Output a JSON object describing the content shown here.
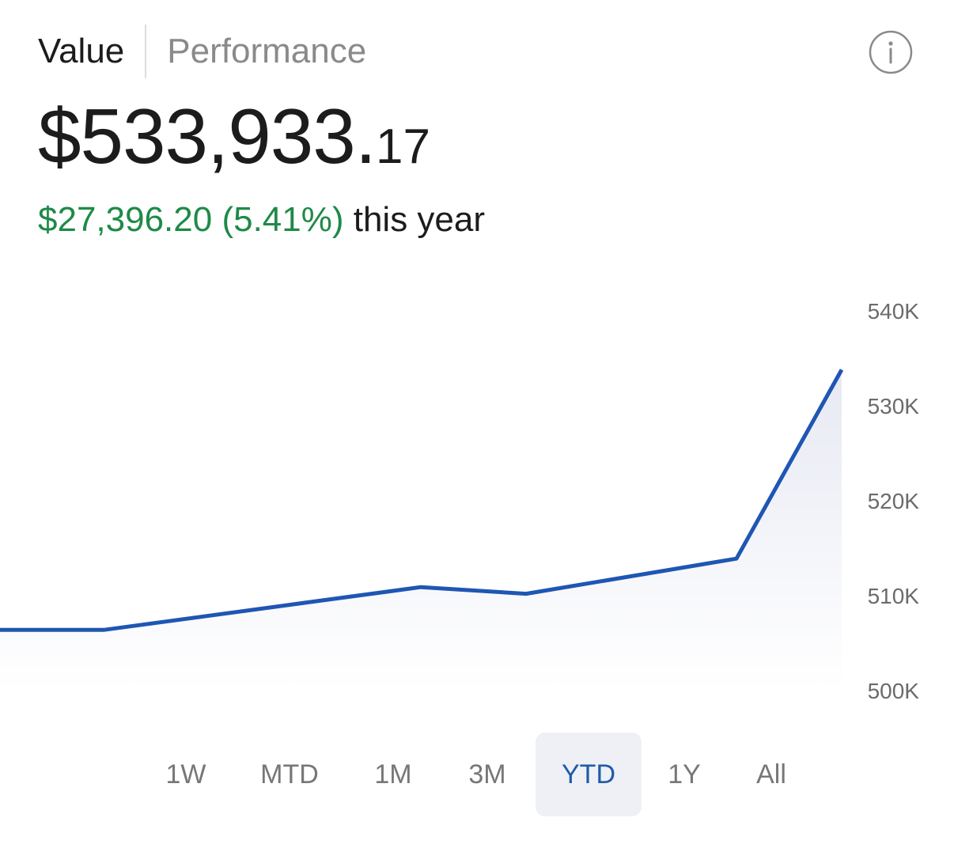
{
  "tabs": {
    "value": "Value",
    "performance": "Performance"
  },
  "info_icon": "info-icon",
  "portfolio": {
    "value_main": "$533,933.",
    "value_cents": "17",
    "change_amount": "$27,396.20 (5.41%)",
    "change_suffix": " this year"
  },
  "colors": {
    "line": "#1f56b3",
    "positive": "#1e8a47",
    "selected_bg": "#eef0f5",
    "selected_text": "#1f5aa8"
  },
  "chart_data": {
    "type": "area",
    "yticks": [
      "540K",
      "530K",
      "520K",
      "510K",
      "500K"
    ],
    "ylim": [
      500000,
      540000
    ],
    "y_axis_position": "right",
    "grid": false,
    "values": [
      506400,
      506400,
      510900,
      510200,
      513900,
      533800
    ]
  },
  "ranges": {
    "selected": "YTD",
    "options": [
      "1W",
      "MTD",
      "1M",
      "3M",
      "YTD",
      "1Y",
      "All"
    ]
  }
}
